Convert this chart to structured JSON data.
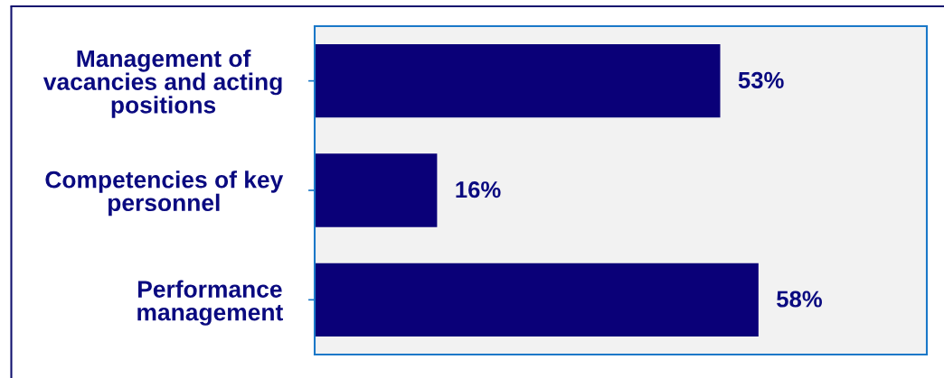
{
  "chart_data": {
    "type": "bar",
    "orientation": "horizontal",
    "categories": [
      "Management of vacancies and acting positions",
      "Competencies of key personnel",
      "Performance management"
    ],
    "values": [
      53,
      16,
      58
    ],
    "value_labels": [
      "53%",
      "16%",
      "58%"
    ],
    "color": "#0a0078",
    "xlim": [
      0,
      80
    ],
    "tick_labels": "y"
  }
}
